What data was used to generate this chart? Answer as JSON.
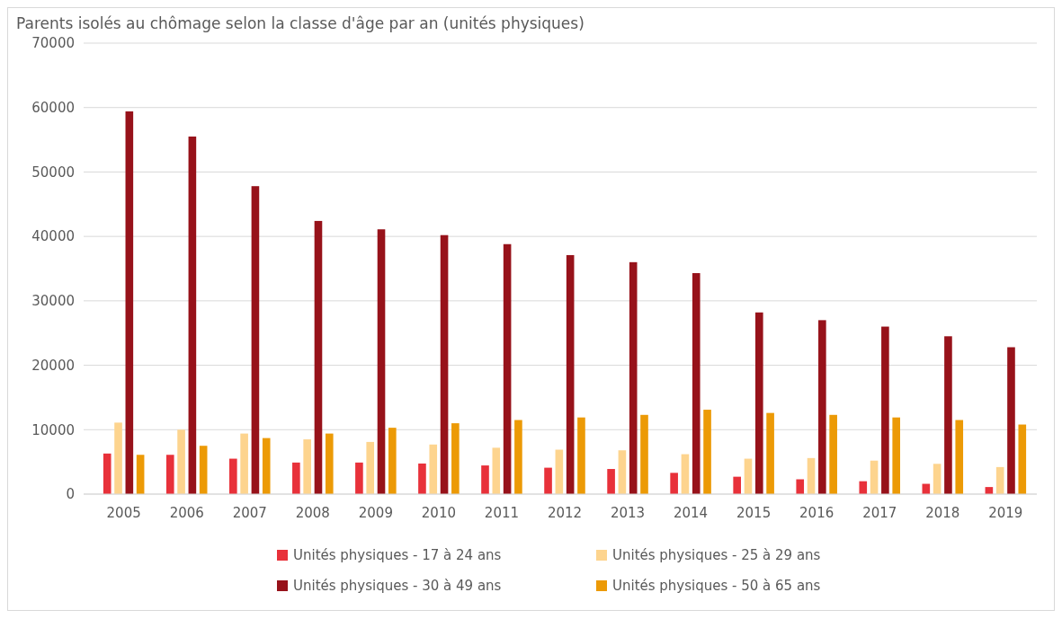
{
  "chart_data": {
    "type": "bar",
    "title": "Parents isolés au chômage selon la classe d'âge par an (unités physiques)",
    "categories": [
      "2005",
      "2006",
      "2007",
      "2008",
      "2009",
      "2010",
      "2011",
      "2012",
      "2013",
      "2014",
      "2015",
      "2016",
      "2017",
      "2018",
      "2019"
    ],
    "series": [
      {
        "name": "Unités physiques - 17 à 24 ans",
        "color": "#e8313a",
        "values": [
          6300,
          6100,
          5500,
          4900,
          4900,
          4750,
          4450,
          4100,
          3900,
          3300,
          2700,
          2300,
          2000,
          1600,
          1100
        ]
      },
      {
        "name": "Unités physiques - 25 à 29 ans",
        "color": "#fdd48e",
        "values": [
          11100,
          10000,
          9400,
          8500,
          8100,
          7700,
          7200,
          6900,
          6800,
          6200,
          5500,
          5600,
          5200,
          4700,
          4200
        ]
      },
      {
        "name": "Unités physiques - 30 à 49 ans",
        "color": "#97121a",
        "values": [
          59400,
          55500,
          47800,
          42400,
          41100,
          40200,
          38800,
          37100,
          36000,
          34300,
          28200,
          27000,
          26000,
          24500,
          22800
        ]
      },
      {
        "name": "Unités physiques - 50 à 65 ans",
        "color": "#ec9a06",
        "values": [
          6100,
          7500,
          8700,
          9400,
          10300,
          11000,
          11500,
          11900,
          12300,
          13100,
          12600,
          12300,
          11900,
          11500,
          10800
        ]
      }
    ],
    "ylim": [
      0,
      70000
    ],
    "yticks": [
      0,
      10000,
      20000,
      30000,
      40000,
      50000,
      60000,
      70000
    ],
    "grid": "y",
    "legend": "bottom"
  }
}
